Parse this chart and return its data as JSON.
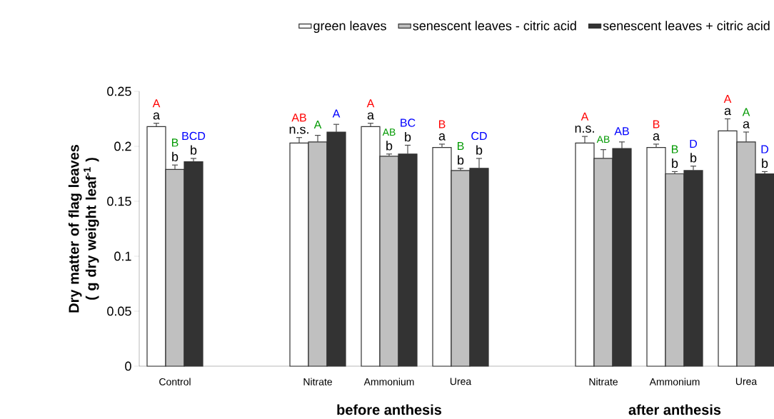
{
  "chart_data": {
    "type": "bar",
    "ylabel": "Dry matter of flag leaves ( g dry weight leaf$^{-1}$ )",
    "categories": [
      "Control",
      null,
      "Nitrate",
      "Ammonium",
      "Urea",
      null,
      "Nitrate",
      "Ammonium",
      "Urea"
    ],
    "series": [
      {
        "name": "green leaves",
        "color": "#ffffff",
        "values": [
          0.218,
          null,
          0.203,
          0.218,
          0.199,
          null,
          0.203,
          0.199,
          0.214
        ],
        "errors": [
          0.003,
          null,
          0.005,
          0.003,
          0.003,
          null,
          0.006,
          0.003,
          0.011
        ],
        "value_labels": [
          "a",
          null,
          "n.s.",
          "a",
          "a",
          null,
          "n.s.",
          "a",
          "a"
        ]
      },
      {
        "name": "senescent leaves - citric acid",
        "color": "#c0c0c0",
        "values": [
          0.179,
          null,
          0.204,
          0.191,
          0.178,
          null,
          0.189,
          0.175,
          0.204
        ],
        "errors": [
          0.004,
          null,
          0.006,
          0.002,
          0.002,
          null,
          0.008,
          0.002,
          0.009
        ],
        "value_labels": [
          "b",
          null,
          null,
          "b",
          "b",
          null,
          null,
          "b",
          "a"
        ]
      },
      {
        "name": "senescent leaves + citric acid",
        "color": "#333333",
        "values": [
          0.186,
          null,
          0.213,
          0.193,
          0.18,
          null,
          0.198,
          0.178,
          0.175
        ],
        "errors": [
          0.003,
          null,
          0.007,
          0.008,
          0.009,
          null,
          0.006,
          0.004,
          0.002
        ],
        "value_labels": [
          "b",
          null,
          null,
          "b",
          "b",
          null,
          null,
          "b",
          "b"
        ]
      }
    ],
    "ylim": [
      0,
      0.25
    ],
    "yticks": [
      0,
      0.05,
      0.1,
      0.15,
      0.2,
      0.25
    ],
    "legend": "top",
    "grid": false,
    "annotations": [
      "A",
      "B",
      "BCD",
      "AB",
      "A",
      "A",
      "A",
      "AB",
      "BC",
      "B",
      "B",
      "CD",
      "A",
      "AB",
      "AB",
      "B",
      "B",
      "D",
      "A",
      "A",
      "D",
      "before anthesis",
      "after anthesis"
    ]
  }
}
